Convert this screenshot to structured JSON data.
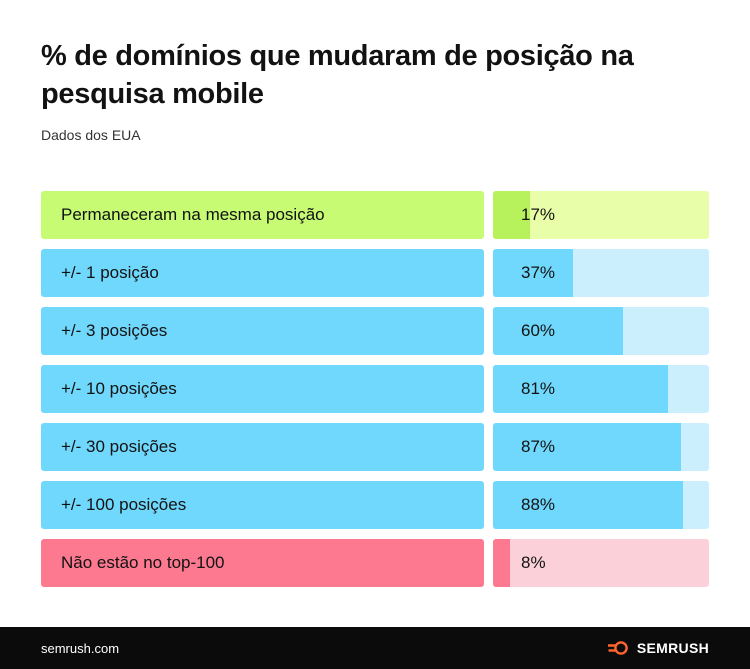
{
  "header": {
    "title": "% de domínios que mudaram de posição na pesquisa mobile",
    "subtitle": "Dados dos EUA"
  },
  "colors": {
    "green_label": "#c6fb73",
    "green_track": "#e9fea8",
    "green_fill": "#b7f25d",
    "blue_label": "#6fd8fc",
    "blue_track": "#cbeffd",
    "blue_fill": "#6fd8fc",
    "pink_label": "#fc7990",
    "pink_track": "#fbd0d8",
    "pink_fill": "#fc7990"
  },
  "chart_data": {
    "type": "bar",
    "orientation": "horizontal",
    "unit": "%",
    "xlim": [
      0,
      100
    ],
    "categories": [
      "Permaneceram na mesma posição",
      "+/- 1 posição",
      "+/- 3 posições",
      "+/- 10 posições",
      "+/- 30 posições",
      "+/- 100 posições",
      "Não estão no top-100"
    ],
    "values": [
      17,
      37,
      60,
      81,
      87,
      88,
      8
    ],
    "value_labels": [
      "17%",
      "37%",
      "60%",
      "81%",
      "87%",
      "88%",
      "8%"
    ],
    "row_colors": [
      "green",
      "blue",
      "blue",
      "blue",
      "blue",
      "blue",
      "pink"
    ]
  },
  "footer": {
    "site": "semrush.com",
    "logo_text": "SEMRUSH",
    "logo_icon": "semrush-fire-icon"
  }
}
